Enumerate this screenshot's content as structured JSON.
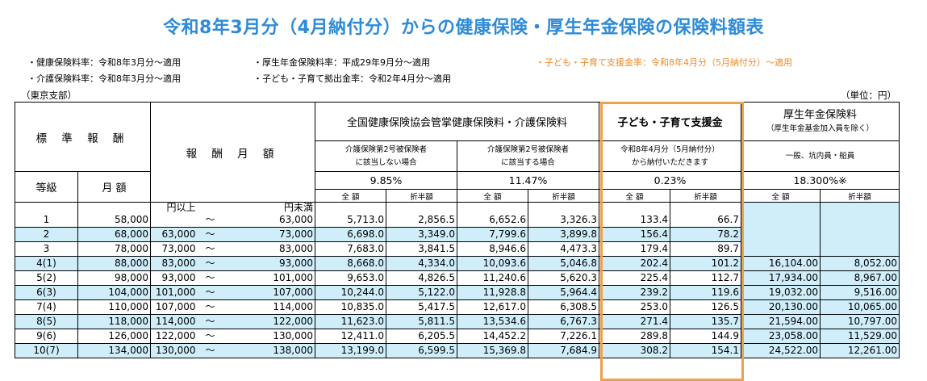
{
  "title": "令和8年3月分（4月納付分）からの健康保険・厚生年金保険の保険料額表",
  "notes": {
    "health_rate": "・健康保険料率：令和8年3月分～適用",
    "care_rate": "・介護保険料率：令和8年3月分～適用",
    "pension_rate": "・厚生年金保険料率：平成29年9月分～適用",
    "child_contribution_rate": "・子ども・子育て拠出金率：令和2年4月分～適用",
    "child_support_rate": "・子ども・子育て支援金率：令和8年4月分（5月納付分）～適用"
  },
  "branch": "（東京支部）",
  "unit": "（単位：円）",
  "header": {
    "standard_remuneration": "標 準 報 酬",
    "grade": "等級",
    "monthly_amount": "月 額",
    "remuneration_range": "報 酬 月 額",
    "health_group": "全国健康保険協会管掌健康保険料・介護保険料",
    "no_care_label_1": "介護保険第2号被保険者",
    "no_care_label_2": "に該当しない場合",
    "care_label_1": "介護保険第2号被保険者",
    "care_label_2": "に該当する場合",
    "health_rate": "9.85%",
    "health_care_rate": "11.47%",
    "child_group": "子ども・子育て支援金",
    "child_label_1": "令和8年4月分（5月納付分）",
    "child_label_2": "から納付いただきます",
    "child_rate": "0.23%",
    "pension_group": "厚生年金保険料",
    "pension_sub": "（厚生年金基金加入員を除く）",
    "pension_label": "一般、坑内員・船員",
    "pension_rate": "18.300%※",
    "full": "全 額",
    "half": "折半額",
    "range_from": "円以上",
    "range_to": "円未満",
    "tilde": "～"
  },
  "rows": [
    {
      "grade": "1",
      "monthly": "58,000",
      "from": "",
      "to": "63,000",
      "h_full": "5,713.0",
      "h_half": "2,856.5",
      "c_full": "6,652.6",
      "c_half": "3,326.3",
      "k_full": "133.4",
      "k_half": "66.7",
      "p_full": "",
      "p_half": "",
      "blue": false
    },
    {
      "grade": "2",
      "monthly": "68,000",
      "from": "63,000",
      "to": "73,000",
      "h_full": "6,698.0",
      "h_half": "3,349.0",
      "c_full": "7,799.6",
      "c_half": "3,899.8",
      "k_full": "156.4",
      "k_half": "78.2",
      "p_full": "",
      "p_half": "",
      "blue": true
    },
    {
      "grade": "3",
      "monthly": "78,000",
      "from": "73,000",
      "to": "83,000",
      "h_full": "7,683.0",
      "h_half": "3,841.5",
      "c_full": "8,946.6",
      "c_half": "4,473.3",
      "k_full": "179.4",
      "k_half": "89.7",
      "p_full": "",
      "p_half": "",
      "blue": false
    },
    {
      "grade": "4(1)",
      "monthly": "88,000",
      "from": "83,000",
      "to": "93,000",
      "h_full": "8,668.0",
      "h_half": "4,334.0",
      "c_full": "10,093.6",
      "c_half": "5,046.8",
      "k_full": "202.4",
      "k_half": "101.2",
      "p_full": "16,104.00",
      "p_half": "8,052.00",
      "blue": true
    },
    {
      "grade": "5(2)",
      "monthly": "98,000",
      "from": "93,000",
      "to": "101,000",
      "h_full": "9,653.0",
      "h_half": "4,826.5",
      "c_full": "11,240.6",
      "c_half": "5,620.3",
      "k_full": "225.4",
      "k_half": "112.7",
      "p_full": "17,934.00",
      "p_half": "8,967.00",
      "blue": false
    },
    {
      "grade": "6(3)",
      "monthly": "104,000",
      "from": "101,000",
      "to": "107,000",
      "h_full": "10,244.0",
      "h_half": "5,122.0",
      "c_full": "11,928.8",
      "c_half": "5,964.4",
      "k_full": "239.2",
      "k_half": "119.6",
      "p_full": "19,032.00",
      "p_half": "9,516.00",
      "blue": true
    },
    {
      "grade": "7(4)",
      "monthly": "110,000",
      "from": "107,000",
      "to": "114,000",
      "h_full": "10,835.0",
      "h_half": "5,417.5",
      "c_full": "12,617.0",
      "c_half": "6,308.5",
      "k_full": "253.0",
      "k_half": "126.5",
      "p_full": "20,130.00",
      "p_half": "10,065.00",
      "blue": false
    },
    {
      "grade": "8(5)",
      "monthly": "118,000",
      "from": "114,000",
      "to": "122,000",
      "h_full": "11,623.0",
      "h_half": "5,811.5",
      "c_full": "13,534.6",
      "c_half": "6,767.3",
      "k_full": "271.4",
      "k_half": "135.7",
      "p_full": "21,594.00",
      "p_half": "10,797.00",
      "blue": true
    },
    {
      "grade": "9(6)",
      "monthly": "126,000",
      "from": "122,000",
      "to": "130,000",
      "h_full": "12,411.0",
      "h_half": "6,205.5",
      "c_full": "14,452.2",
      "c_half": "7,226.1",
      "k_full": "289.8",
      "k_half": "144.9",
      "p_full": "23,058.00",
      "p_half": "11,529.00",
      "blue": false
    },
    {
      "grade": "10(7)",
      "monthly": "134,000",
      "from": "130,000",
      "to": "138,000",
      "h_full": "13,199.0",
      "h_half": "6,599.5",
      "c_full": "15,369.8",
      "c_half": "7,684.9",
      "k_full": "308.2",
      "k_half": "154.1",
      "p_full": "24,522.00",
      "p_half": "12,261.00",
      "blue": true
    }
  ]
}
